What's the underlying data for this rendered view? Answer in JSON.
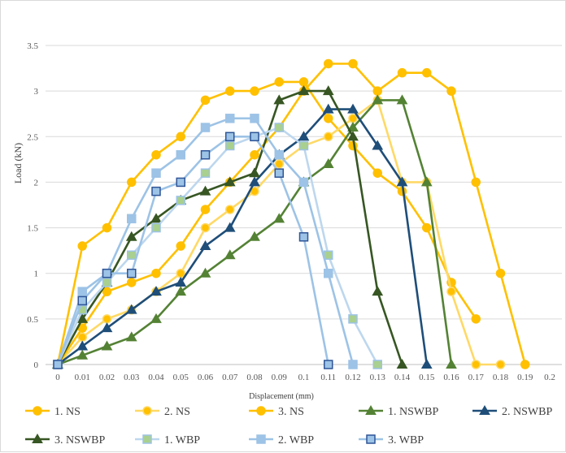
{
  "chart_data": {
    "type": "line",
    "title": "",
    "xlabel": "Displacement (mm)",
    "ylabel": "Load (kN)",
    "xlim": [
      0,
      0.2
    ],
    "ylim": [
      0,
      3.5
    ],
    "x_ticks": [
      "0",
      "0.01",
      "0.02",
      "0.03",
      "0.04",
      "0.05",
      "0.06",
      "0.07",
      "0.08",
      "0.09",
      "0.1",
      "0.11",
      "0.12",
      "0.13",
      "0.14",
      "0.15",
      "0.16",
      "0.17",
      "0.18",
      "0.19",
      "0.2"
    ],
    "y_ticks": [
      "0",
      "0.5",
      "1",
      "1.5",
      "2",
      "2.5",
      "3",
      "3.5"
    ],
    "grid": "horizontal",
    "legend_position": "bottom",
    "series": [
      {
        "name": "1. NS",
        "color": "#FFC000",
        "line_color": "#FFC000",
        "marker": "circle",
        "marker_fill": "#FFC000",
        "marker_stroke": "#FFC000",
        "x": [
          0,
          0.01,
          0.02,
          0.03,
          0.04,
          0.05,
          0.06,
          0.07,
          0.08,
          0.09,
          0.1,
          0.11,
          0.12,
          0.13,
          0.14,
          0.15,
          0.16,
          0.17
        ],
        "y": [
          0,
          1.3,
          1.5,
          2.0,
          2.3,
          2.5,
          2.9,
          3.0,
          3.0,
          3.1,
          3.1,
          2.7,
          2.4,
          2.1,
          1.9,
          1.5,
          0.9,
          0.5
        ]
      },
      {
        "name": "2. NS",
        "color": "#FFD966",
        "line_color": "#FFD966",
        "marker": "circle",
        "marker_fill": "#FFC000",
        "marker_stroke": "#FFD966",
        "x": [
          0,
          0.01,
          0.02,
          0.03,
          0.04,
          0.05,
          0.06,
          0.07,
          0.08,
          0.09,
          0.1,
          0.11,
          0.12,
          0.13,
          0.14,
          0.15,
          0.16,
          0.17,
          0.18
        ],
        "y": [
          0,
          0.3,
          0.5,
          0.6,
          0.8,
          1.0,
          1.5,
          1.7,
          1.9,
          2.2,
          2.4,
          2.5,
          2.7,
          2.9,
          2.0,
          2.0,
          0.8,
          0.0,
          0.0
        ]
      },
      {
        "name": "3. NS",
        "color": "#FFC000",
        "line_color": "#FFC000",
        "marker": "circle",
        "marker_fill": "#FFC000",
        "marker_stroke": "#FFC000",
        "x": [
          0,
          0.01,
          0.02,
          0.03,
          0.04,
          0.05,
          0.06,
          0.07,
          0.08,
          0.09,
          0.1,
          0.11,
          0.12,
          0.13,
          0.14,
          0.15,
          0.16,
          0.17,
          0.18,
          0.19
        ],
        "y": [
          0,
          0.4,
          0.8,
          0.9,
          1.0,
          1.3,
          1.7,
          2.0,
          2.3,
          2.6,
          3.0,
          3.3,
          3.3,
          3.0,
          3.2,
          3.2,
          3.0,
          2.0,
          1.0,
          0.0
        ]
      },
      {
        "name": "1. NSWBP",
        "color": "#548235",
        "line_color": "#548235",
        "marker": "triangle",
        "marker_fill": "#548235",
        "marker_stroke": "#548235",
        "x": [
          0,
          0.01,
          0.02,
          0.03,
          0.04,
          0.05,
          0.06,
          0.07,
          0.08,
          0.09,
          0.1,
          0.11,
          0.12,
          0.13,
          0.14,
          0.15,
          0.16
        ],
        "y": [
          0,
          0.1,
          0.2,
          0.3,
          0.5,
          0.8,
          1.0,
          1.2,
          1.4,
          1.6,
          2.0,
          2.2,
          2.6,
          2.9,
          2.9,
          2.0,
          0.0
        ]
      },
      {
        "name": "2. NSWBP",
        "color": "#1F4E79",
        "line_color": "#1F4E79",
        "marker": "triangle",
        "marker_fill": "#1F4E79",
        "marker_stroke": "#1F4E79",
        "x": [
          0,
          0.01,
          0.02,
          0.03,
          0.04,
          0.05,
          0.06,
          0.07,
          0.08,
          0.09,
          0.1,
          0.11,
          0.12,
          0.13,
          0.14,
          0.15
        ],
        "y": [
          0,
          0.2,
          0.4,
          0.6,
          0.8,
          0.9,
          1.3,
          1.5,
          2.0,
          2.3,
          2.5,
          2.8,
          2.8,
          2.4,
          2.0,
          0.0
        ]
      },
      {
        "name": "3. NSWBP",
        "color": "#375623",
        "line_color": "#375623",
        "marker": "triangle",
        "marker_fill": "#375623",
        "marker_stroke": "#375623",
        "x": [
          0,
          0.01,
          0.02,
          0.03,
          0.04,
          0.05,
          0.06,
          0.07,
          0.08,
          0.09,
          0.1,
          0.11,
          0.12,
          0.13,
          0.14
        ],
        "y": [
          0,
          0.5,
          0.9,
          1.4,
          1.6,
          1.8,
          1.9,
          2.0,
          2.1,
          2.9,
          3.0,
          3.0,
          2.5,
          0.8,
          0.0
        ]
      },
      {
        "name": "1. WBP",
        "color": "#BDD7EE",
        "line_color": "#BDD7EE",
        "marker": "square",
        "marker_fill": "#A9D08E",
        "marker_stroke": "#9DC3E6",
        "x": [
          0,
          0.01,
          0.02,
          0.03,
          0.04,
          0.05,
          0.06,
          0.07,
          0.08,
          0.09,
          0.1,
          0.11,
          0.12,
          0.13
        ],
        "y": [
          0,
          0.6,
          0.9,
          1.2,
          1.5,
          1.8,
          2.1,
          2.4,
          2.5,
          2.6,
          2.4,
          1.2,
          0.5,
          0.0
        ]
      },
      {
        "name": "2. WBP",
        "color": "#9DC3E6",
        "line_color": "#9DC3E6",
        "marker": "square",
        "marker_fill": "#9DC3E6",
        "marker_stroke": "#9DC3E6",
        "x": [
          0,
          0.01,
          0.02,
          0.03,
          0.04,
          0.05,
          0.06,
          0.07,
          0.08,
          0.09,
          0.1,
          0.11,
          0.12
        ],
        "y": [
          0,
          0.8,
          1.0,
          1.6,
          2.1,
          2.3,
          2.6,
          2.7,
          2.7,
          2.3,
          2.0,
          1.0,
          0.0
        ]
      },
      {
        "name": "3. WBP",
        "color": "#9DC3E6",
        "line_color": "#9DC3E6",
        "marker": "square",
        "marker_fill": "#9DC3E6",
        "marker_stroke": "#2F5597",
        "x": [
          0,
          0.01,
          0.02,
          0.03,
          0.04,
          0.05,
          0.06,
          0.07,
          0.08,
          0.09,
          0.1,
          0.11
        ],
        "y": [
          0,
          0.7,
          1.0,
          1.0,
          1.9,
          2.0,
          2.3,
          2.5,
          2.5,
          2.1,
          1.4,
          0.0
        ]
      }
    ]
  }
}
